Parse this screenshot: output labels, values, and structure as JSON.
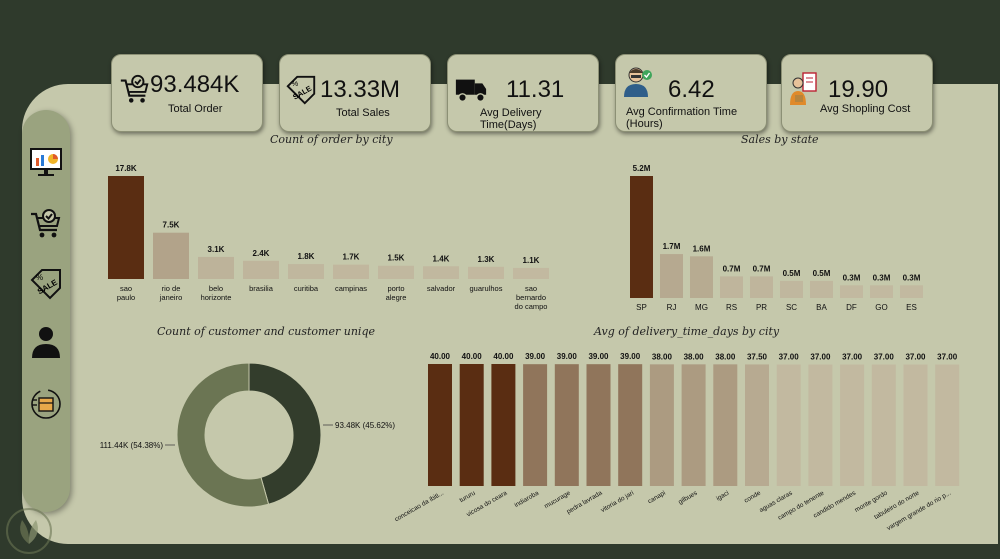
{
  "kpis": [
    {
      "value": "93.484K",
      "label": "Total Order",
      "icon": "cart-check-icon"
    },
    {
      "value": "13.33M",
      "label": "Total Sales",
      "icon": "sale-tag-icon"
    },
    {
      "value": "11.31",
      "label": "Avg Delivery Time(Days)",
      "icon": "delivery-truck-icon"
    },
    {
      "value": "6.42",
      "label": "Avg Confirmation Time (Hours)",
      "icon": "confirmation-person-icon"
    },
    {
      "value": "19.90",
      "label": "Avg Shopling Cost",
      "icon": "shopping-cost-icon"
    }
  ],
  "sidebar": {
    "items": [
      {
        "icon": "dashboard-monitor-icon"
      },
      {
        "icon": "cart-check-icon"
      },
      {
        "icon": "sale-tag-icon"
      },
      {
        "icon": "customer-person-icon"
      },
      {
        "icon": "delivery-box-icon"
      }
    ]
  },
  "colors": {
    "background": "#2f3a2c",
    "canvas": "#c5c8ab",
    "bar_dark": "#5a2d12",
    "bar_light": "#c2b9a0",
    "donut_dark": "#333d2c",
    "donut_light": "#6b7553"
  },
  "chart_data": [
    {
      "type": "bar",
      "title": "Count of order by city",
      "categories": [
        "sao paulo",
        "rio de janeiro",
        "belo horizonte",
        "brasilia",
        "curitiba",
        "campinas",
        "porto alegre",
        "salvador",
        "guarulhos",
        "sao bernardo do campo"
      ],
      "values": [
        17800,
        7500,
        3100,
        2400,
        1800,
        1700,
        1500,
        1400,
        1300,
        1100
      ],
      "data_labels": [
        "17.8K",
        "7.5K",
        "3.1K",
        "2.4K",
        "1.8K",
        "1.7K",
        "1.5K",
        "1.4K",
        "1.3K",
        "1.1K"
      ]
    },
    {
      "type": "bar",
      "title": "Sales by state",
      "categories": [
        "SP",
        "RJ",
        "MG",
        "RS",
        "PR",
        "SC",
        "BA",
        "DF",
        "GO",
        "ES"
      ],
      "values": [
        5.2,
        1.7,
        1.6,
        0.7,
        0.7,
        0.5,
        0.5,
        0.3,
        0.3,
        0.3
      ],
      "data_labels": [
        "5.2M",
        "1.7M",
        "1.6M",
        "0.7M",
        "0.7M",
        "0.5M",
        "0.5M",
        "0.3M",
        "0.3M",
        "0.3M"
      ]
    },
    {
      "type": "pie",
      "title": "Count of customer and customer uniqe",
      "values": [
        93.48,
        111.44
      ],
      "data_labels": [
        "93.48K (45.62%)",
        "111.44K (54.38%)"
      ]
    },
    {
      "type": "bar",
      "title": "Avg of delivery_time_days by city",
      "categories": [
        "conceicao da ibiti...",
        "tururu",
        "vicosa do ceara",
        "indiaroba",
        "mucurage",
        "pedra lavrada",
        "vitoria do jari",
        "canapi",
        "gilbues",
        "igaci",
        "conde",
        "aguas claras",
        "campo do tenente",
        "candido mendes",
        "monte gordo",
        "tabuleiro do norte",
        "vargem grande do rio p..."
      ],
      "values": [
        40,
        40,
        40,
        39,
        39,
        39,
        39,
        38,
        38,
        38,
        37.5,
        37,
        37,
        37,
        37,
        37,
        37
      ],
      "data_labels": [
        "40.00",
        "40.00",
        "40.00",
        "39.00",
        "39.00",
        "39.00",
        "39.00",
        "38.00",
        "38.00",
        "38.00",
        "37.50",
        "37.00",
        "37.00",
        "37.00",
        "37.00",
        "37.00",
        "37.00"
      ]
    }
  ]
}
